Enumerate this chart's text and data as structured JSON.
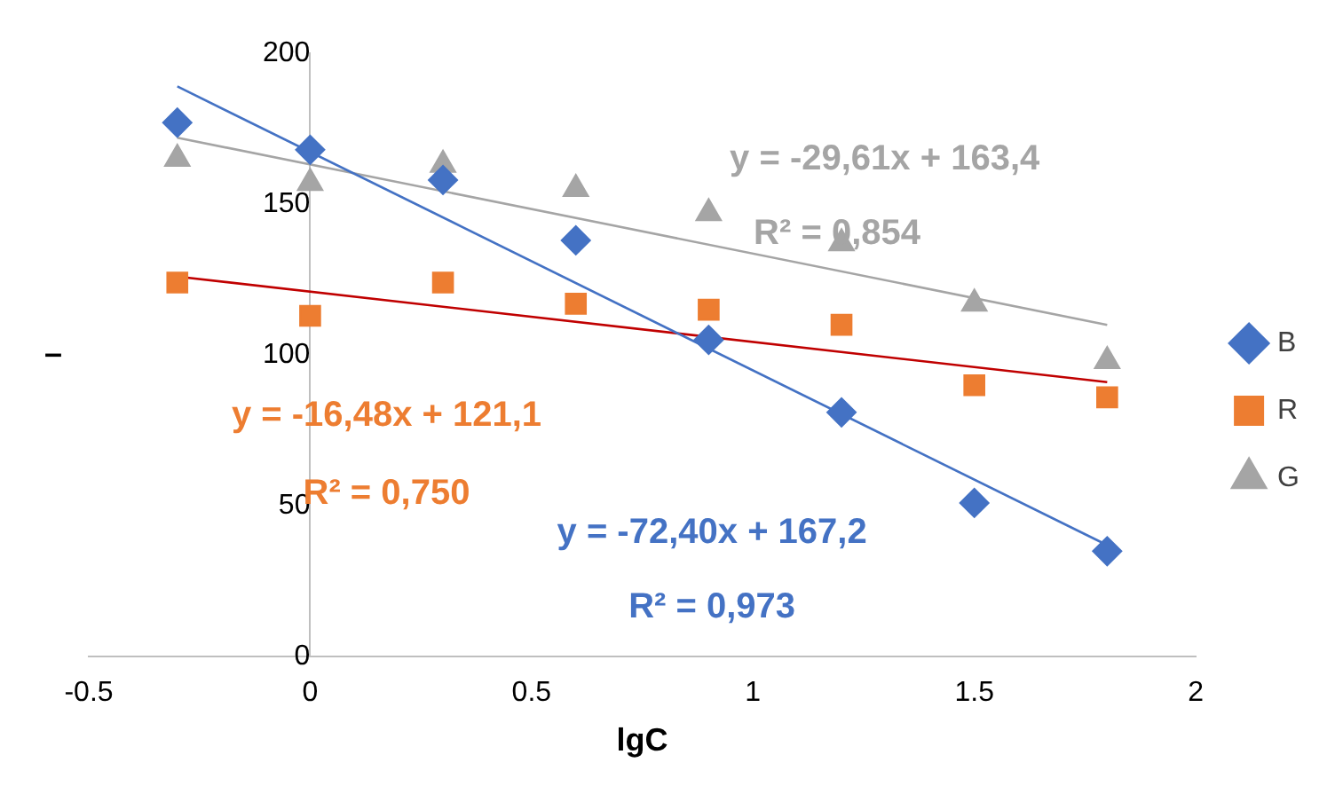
{
  "chart_data": {
    "type": "scatter",
    "xlabel": "lgC",
    "ylabel": "–",
    "xlim": [
      -0.5,
      2
    ],
    "xticks": [
      -0.5,
      0,
      0.5,
      1,
      1.5,
      2
    ],
    "ylim": [
      0,
      200
    ],
    "yticks": [
      0,
      50,
      100,
      150,
      200
    ],
    "grid": false,
    "legend": "right",
    "series": [
      {
        "name": "B",
        "color": "#4472c4",
        "marker": "diamond",
        "x": [
          -0.3,
          0,
          0.3,
          0.6,
          0.9,
          1.2,
          1.5,
          1.8
        ],
        "values": [
          177,
          168,
          158,
          138,
          105,
          81,
          51,
          35
        ]
      },
      {
        "name": "R",
        "color": "#ed7d31",
        "marker": "square",
        "x": [
          -0.3,
          0,
          0.3,
          0.6,
          0.9,
          1.2,
          1.5,
          1.8
        ],
        "values": [
          124,
          113,
          124,
          117,
          115,
          110,
          90,
          86
        ]
      },
      {
        "name": "G",
        "color": "#a5a5a5",
        "marker": "triangle",
        "x": [
          -0.3,
          0,
          0.3,
          0.6,
          0.9,
          1.2,
          1.5,
          1.8
        ],
        "values": [
          165,
          157,
          163,
          155,
          147,
          137,
          117,
          98
        ]
      },
      {
        "type": "line",
        "color": "#4472c4",
        "marker": "none",
        "x": [
          -0.3,
          1.8
        ],
        "values": [
          189,
          37
        ]
      },
      {
        "type": "line",
        "color": "#c00000",
        "marker": "none",
        "x": [
          -0.3,
          1.8
        ],
        "values": [
          126,
          91
        ]
      },
      {
        "type": "line",
        "color": "#a5a5a5",
        "marker": "none",
        "x": [
          -0.3,
          1.8
        ],
        "values": [
          172,
          110
        ]
      }
    ],
    "annotations": [
      "y = -72,40x + 167,2",
      "R² = 0,973",
      "y = -16,48x + 121,1",
      "R² = 0,750",
      "y = -29,61x + 163,4",
      "R² = 0,854"
    ]
  }
}
